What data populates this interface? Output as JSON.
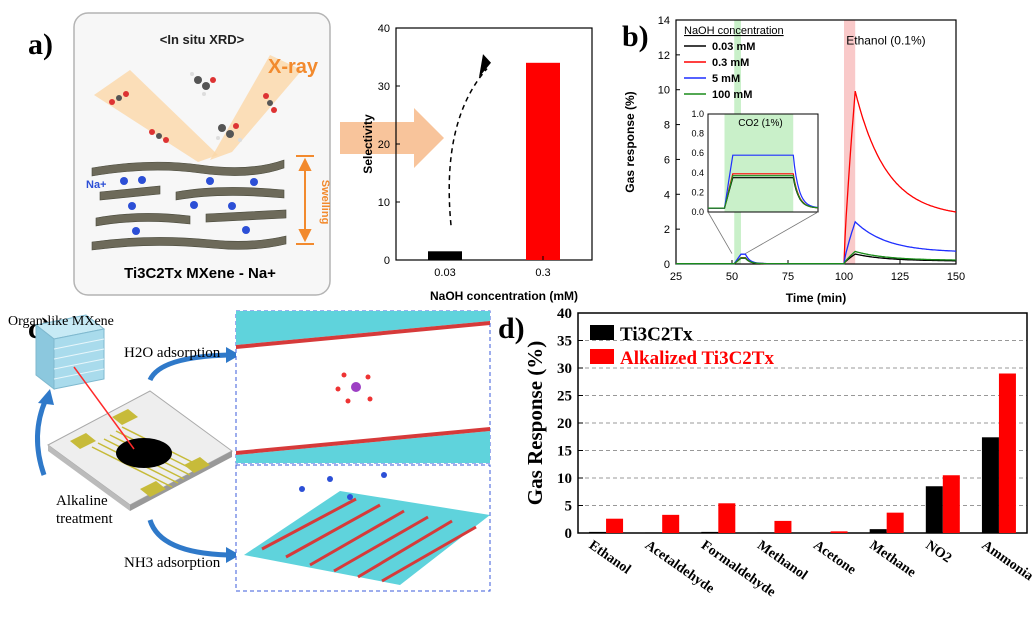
{
  "panels": {
    "a": "a)",
    "b": "b)",
    "c": "c)",
    "d": "d)"
  },
  "schematic_a": {
    "heading": "<In situ XRD>",
    "xray_label": "X-ray",
    "ion_label": "Na+",
    "swelling_label": "Swelling",
    "caption": "Ti3C2Tx MXene - Na+",
    "arrow_color": "#f5b07a"
  },
  "schematic_c": {
    "organ_label": "Organ-like MXene",
    "h2o_label": "H2O adsorption",
    "nh3_label": "NH3 adsorption",
    "alkaline_label_1": "Alkaline",
    "alkaline_label_2": "treatment"
  },
  "colors": {
    "black": "#000000",
    "red": "#ff0000",
    "blue": "#1f2fff",
    "green": "#1a8c1a",
    "highlight_red": "#f9c9c9",
    "highlight_green": "#c9f0c9"
  },
  "chart_data": [
    {
      "id": "selectivity",
      "type": "bar",
      "categories": [
        "0.03",
        "0.3"
      ],
      "values": [
        1.5,
        34
      ],
      "colors": [
        "#000000",
        "#ff0000"
      ],
      "xlabel": "NaOH concentration (mM)",
      "ylabel": "Selectivity",
      "ylim": [
        0,
        40
      ],
      "yticks": [
        0,
        10,
        20,
        30,
        40
      ]
    },
    {
      "id": "gas-response-time",
      "type": "line",
      "xlabel": "Time (min)",
      "ylabel": "Gas response (%)",
      "xlim": [
        25,
        150
      ],
      "ylim": [
        0,
        14
      ],
      "xticks": [
        25,
        50,
        75,
        100,
        125,
        150
      ],
      "yticks": [
        0,
        2,
        4,
        6,
        8,
        10,
        12,
        14
      ],
      "legend_title": "NaOH concentration",
      "annotation": "Ethanol (0.1%)",
      "series": [
        {
          "name": "0.03 mM",
          "color": "#000000",
          "peak": 0.55
        },
        {
          "name": "0.3 mM",
          "color": "#ff0000",
          "peak": 9.9
        },
        {
          "name": "5 mM",
          "color": "#1f2fff",
          "peak": 2.4
        },
        {
          "name": "100 mM",
          "color": "#1a8c1a",
          "peak": 0.7
        }
      ],
      "inset": {
        "label": "CO2 (1%)",
        "ylim": [
          0,
          1.0
        ],
        "yticks": [
          0.0,
          0.2,
          0.4,
          0.6,
          0.8,
          1.0
        ],
        "plateaus": [
          {
            "series": "0.03 mM",
            "value": 0.31
          },
          {
            "series": "0.3 mM",
            "value": 0.35
          },
          {
            "series": "5 mM",
            "value": 0.54
          },
          {
            "series": "100 mM",
            "value": 0.33
          }
        ]
      }
    },
    {
      "id": "gas-response-gases",
      "type": "bar",
      "categories": [
        "Ethanol",
        "Acetaldehyde",
        "Formaldehyde",
        "Methanol",
        "Acetone",
        "Methane",
        "NO2",
        "Ammonia"
      ],
      "ylabel": "Gas Response (%)",
      "ylim": [
        0,
        40
      ],
      "yticks": [
        0,
        5,
        10,
        15,
        20,
        25,
        30,
        35,
        40
      ],
      "grid": true,
      "legend_position": "top-left",
      "series": [
        {
          "name": "Ti3C2Tx",
          "color": "#000000",
          "values": [
            0.2,
            0.1,
            0.2,
            0.1,
            0.0,
            0.7,
            8.5,
            17.4
          ]
        },
        {
          "name": "Alkalized Ti3C2Tx",
          "color": "#ff0000",
          "values": [
            2.6,
            3.3,
            5.4,
            2.2,
            0.3,
            3.7,
            10.5,
            29.0
          ]
        }
      ]
    }
  ]
}
